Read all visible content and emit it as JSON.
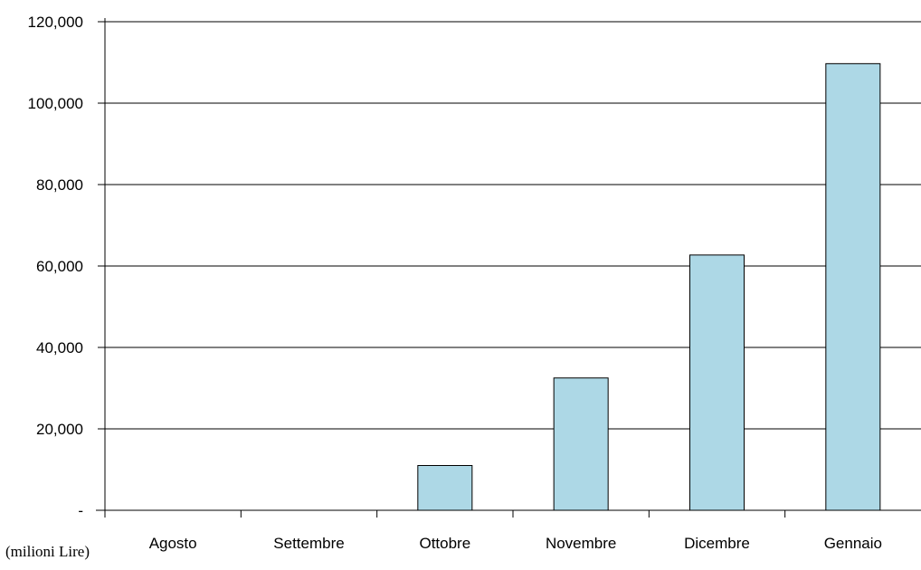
{
  "chart_data": {
    "type": "bar",
    "categories": [
      "Agosto",
      "Settembre",
      "Ottobre",
      "Novembre",
      "Dicembre",
      "Gennaio"
    ],
    "values": [
      0,
      0,
      11000,
      32500,
      62700,
      109700
    ],
    "ylim": [
      0,
      120000
    ],
    "y_ticks": [
      0,
      20000,
      40000,
      60000,
      80000,
      100000,
      120000
    ],
    "y_tick_labels": [
      "-",
      "20,000",
      "40,000",
      "60,000",
      "80,000",
      "100,000",
      "120,000"
    ],
    "ylabel": "(milioni Lire)",
    "grid": true,
    "legend": "none",
    "colors": {
      "bar_fill": "#add8e6",
      "bar_stroke": "#000000",
      "grid": "#000000"
    }
  }
}
